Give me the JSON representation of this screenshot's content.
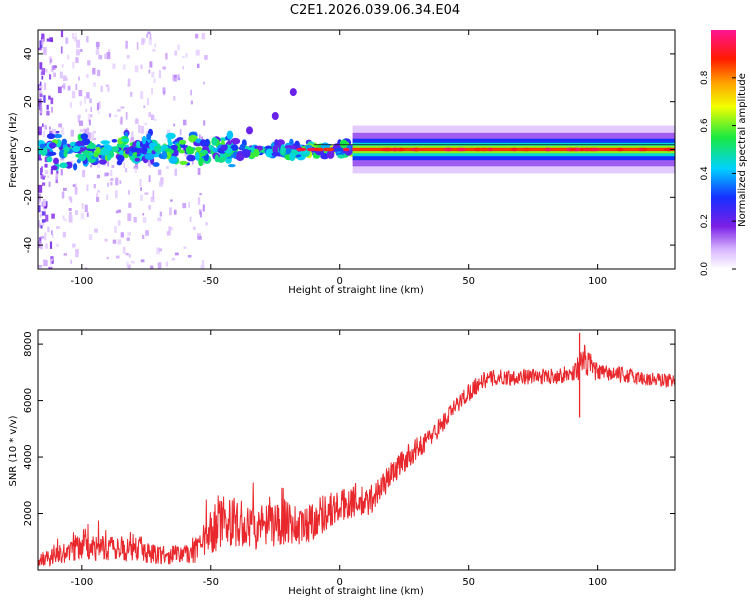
{
  "figure_title": "C2E1.2026.039.06.34.E04",
  "chart_data": [
    {
      "type": "heatmap",
      "title": "C2E1.2026.039.06.34.E04",
      "xlabel": "Height of straight line (km)",
      "ylabel": "Frequency (Hz)",
      "xlim": [
        -117,
        130
      ],
      "ylim": [
        -50,
        50
      ],
      "xticks": [
        -100,
        -50,
        0,
        50,
        100
      ],
      "yticks": [
        -40,
        -20,
        0,
        20,
        40
      ],
      "colorbar": {
        "label": "Normalized spectral amplitude",
        "range": [
          0.0,
          1.0
        ],
        "ticks": [
          0.0,
          0.2,
          0.4,
          0.6,
          0.8
        ],
        "colormap": "rainbow (white-violet-blue-cyan-green-yellow-red-magenta)"
      },
      "signal_band": {
        "center_frequency_hz": 0,
        "description": "Narrow band near 0 Hz, weak and scattered below about 0 km, strong and continuous above"
      },
      "drift_feature": {
        "x": [
          -35,
          -25,
          -18
        ],
        "y": [
          8,
          14,
          24
        ]
      }
    },
    {
      "type": "line",
      "xlabel": "Height of straight line (km)",
      "ylabel": "SNR (10 * v/v)",
      "xlim": [
        -117,
        130
      ],
      "ylim": [
        0,
        8500
      ],
      "xticks": [
        -100,
        -50,
        0,
        50,
        100
      ],
      "yticks": [
        2000,
        4000,
        6000,
        8000
      ],
      "color": "#e8282c",
      "series": [
        {
          "name": "SNR",
          "x": [
            -117,
            -110,
            -100,
            -90,
            -80,
            -70,
            -60,
            -55,
            -50,
            -45,
            -40,
            -35,
            -30,
            -25,
            -20,
            -15,
            -10,
            -5,
            0,
            5,
            10,
            15,
            20,
            25,
            30,
            35,
            40,
            45,
            50,
            55,
            60,
            70,
            80,
            90,
            95,
            100,
            110,
            120,
            130
          ],
          "y": [
            300,
            550,
            800,
            750,
            700,
            550,
            550,
            700,
            1300,
            1800,
            1600,
            1400,
            1500,
            1600,
            1700,
            1500,
            1800,
            2100,
            2200,
            2500,
            2300,
            2800,
            3400,
            3900,
            4300,
            4700,
            5200,
            5800,
            6300,
            6700,
            6800,
            6850,
            6850,
            6950,
            7400,
            7000,
            6900,
            6750,
            6700
          ],
          "spread": [
            250,
            350,
            450,
            450,
            400,
            350,
            350,
            500,
            800,
            900,
            800,
            800,
            800,
            800,
            850,
            700,
            750,
            700,
            600,
            650,
            600,
            500,
            450,
            450,
            400,
            350,
            350,
            300,
            350,
            300,
            300,
            280,
            280,
            300,
            600,
            300,
            280,
            280,
            250
          ]
        }
      ],
      "annotations": [
        {
          "text": "spike",
          "x": 93,
          "y_max": 8400,
          "y_min": 5400
        }
      ]
    }
  ]
}
